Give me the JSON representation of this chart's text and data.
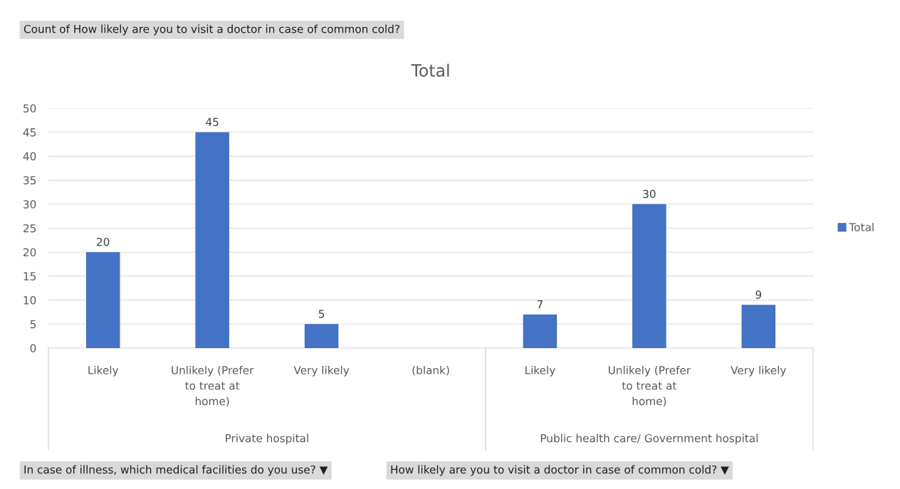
{
  "chart_data": {
    "type": "bar",
    "title": "Total",
    "categories": [
      "Likely",
      "Unlikely (Prefer\nto treat at\nhome)",
      "Very likely",
      "(blank)",
      "Likely",
      "Unlikely (Prefer\nto treat at\nhome)",
      "Very likely"
    ],
    "series": [
      {
        "name": "Total",
        "color": "#4472c4",
        "values": [
          20,
          45,
          5,
          null,
          7,
          30,
          9
        ]
      }
    ],
    "ylim": [
      0,
      50
    ],
    "yticks": [
      0,
      5,
      10,
      15,
      20,
      25,
      30,
      35,
      40,
      45,
      50
    ],
    "grid": "y",
    "legend": "right",
    "data_labels": true,
    "annotations": [
      "Count of How likely are you to visit a doctor in case of common cold?",
      "Private hospital",
      "Public health care/ Government hospital",
      "In case of illness, which medical facilities do you use? ▼",
      "How likely are you to visit a doctor in case of common cold? ▼"
    ]
  }
}
